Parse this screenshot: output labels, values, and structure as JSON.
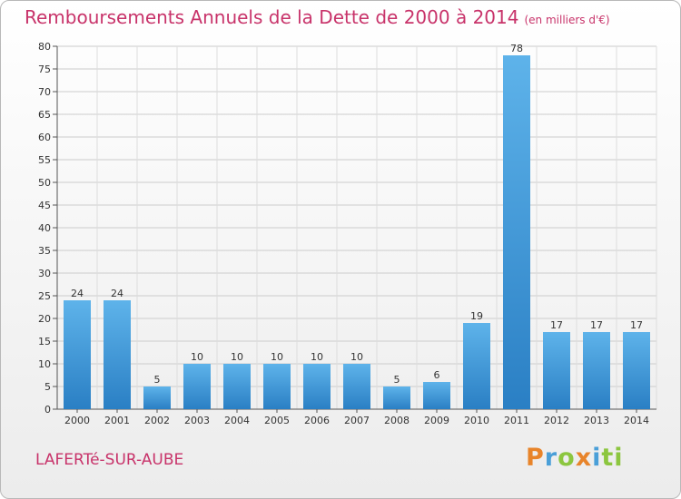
{
  "title": "Remboursements Annuels de la Dette de 2000 à 2014",
  "subtitle": "(en milliers d'€)",
  "commune": "LAFERTé-SUR-AUBE",
  "logo": {
    "text": "Proxiti",
    "letters": [
      "P",
      "r",
      "o",
      "x",
      "i",
      "ti"
    ]
  },
  "colors": {
    "title": "#c8336a",
    "bar_light": "#5eb3ea",
    "bar_dark": "#2a7fc4",
    "grid": "#cccccc"
  },
  "chart_data": {
    "type": "bar",
    "title": "Remboursements Annuels de la Dette de 2000 à 2014",
    "subtitle": "(en milliers d'€)",
    "xlabel": "",
    "ylabel": "",
    "categories": [
      "2000",
      "2001",
      "2002",
      "2003",
      "2004",
      "2005",
      "2006",
      "2007",
      "2008",
      "2009",
      "2010",
      "2011",
      "2012",
      "2013",
      "2014"
    ],
    "values": [
      24,
      24,
      5,
      10,
      10,
      10,
      10,
      10,
      5,
      6,
      19,
      78,
      17,
      17,
      17
    ],
    "ylim": [
      0,
      80
    ],
    "yticks": [
      0,
      5,
      10,
      15,
      20,
      25,
      30,
      35,
      40,
      45,
      50,
      55,
      60,
      65,
      70,
      75,
      80
    ],
    "grid": true,
    "data_labels": true
  }
}
